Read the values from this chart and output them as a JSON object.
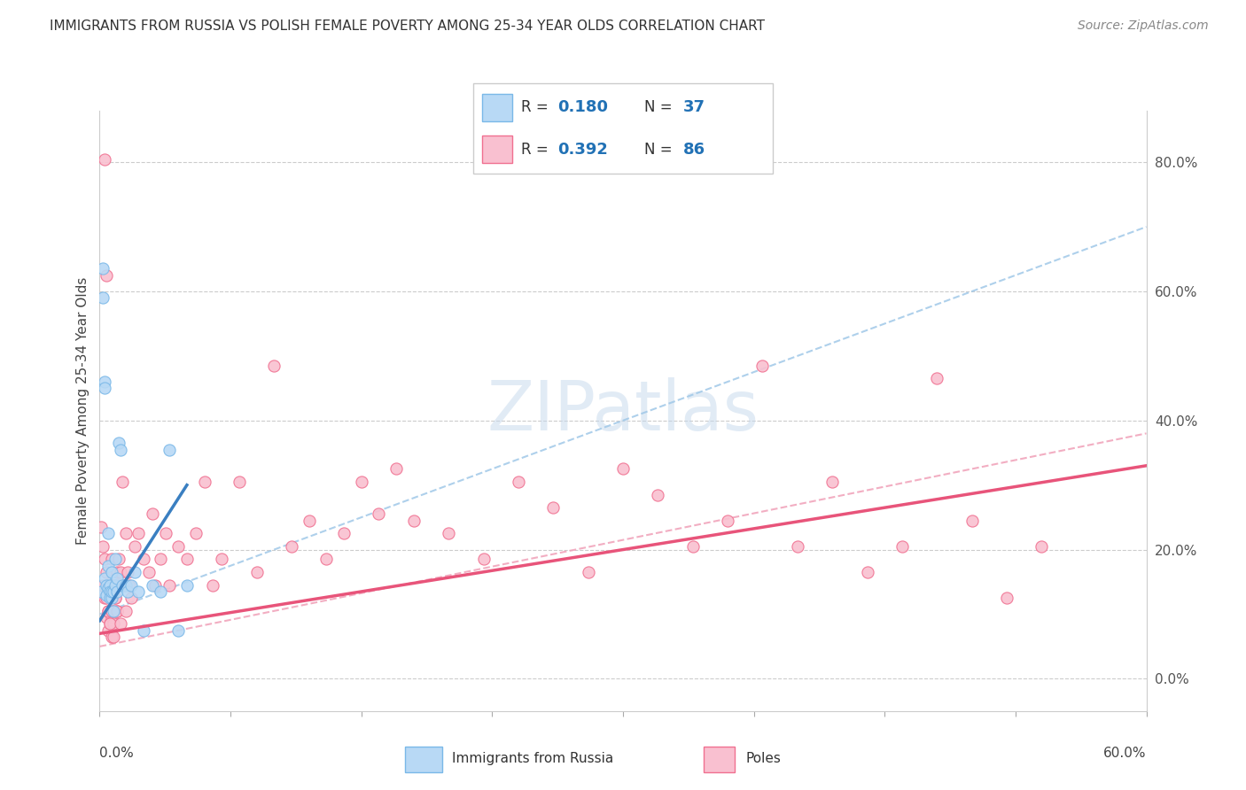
{
  "title": "IMMIGRANTS FROM RUSSIA VS POLISH FEMALE POVERTY AMONG 25-34 YEAR OLDS CORRELATION CHART",
  "source": "Source: ZipAtlas.com",
  "ylabel": "Female Poverty Among 25-34 Year Olds",
  "watermark": "ZIPatlas",
  "legend_r1": "0.180",
  "legend_n1": "37",
  "legend_r2": "0.392",
  "legend_n2": "86",
  "color_russia_fill": "#b8d9f5",
  "color_russia_edge": "#7ab8e8",
  "color_poles_fill": "#f9c0d0",
  "color_poles_edge": "#f07090",
  "color_russia_solid": "#3a7fc1",
  "color_poles_solid": "#e8547a",
  "color_russia_dash": "#a0c8e8",
  "color_poles_dash": "#f0a0b8",
  "russia_x": [
    0.001,
    0.002,
    0.002,
    0.003,
    0.003,
    0.003,
    0.004,
    0.004,
    0.005,
    0.005,
    0.005,
    0.006,
    0.006,
    0.006,
    0.007,
    0.007,
    0.007,
    0.008,
    0.008,
    0.009,
    0.009,
    0.01,
    0.01,
    0.011,
    0.012,
    0.013,
    0.015,
    0.016,
    0.018,
    0.02,
    0.022,
    0.025,
    0.03,
    0.035,
    0.04,
    0.045,
    0.05
  ],
  "russia_y": [
    0.135,
    0.635,
    0.59,
    0.46,
    0.45,
    0.155,
    0.145,
    0.13,
    0.175,
    0.225,
    0.14,
    0.145,
    0.135,
    0.125,
    0.165,
    0.125,
    0.135,
    0.135,
    0.105,
    0.145,
    0.185,
    0.135,
    0.155,
    0.365,
    0.355,
    0.145,
    0.145,
    0.135,
    0.145,
    0.165,
    0.135,
    0.075,
    0.145,
    0.135,
    0.355,
    0.075,
    0.145
  ],
  "poles_x": [
    0.001,
    0.002,
    0.002,
    0.003,
    0.003,
    0.004,
    0.004,
    0.004,
    0.005,
    0.005,
    0.005,
    0.006,
    0.006,
    0.007,
    0.007,
    0.007,
    0.008,
    0.008,
    0.008,
    0.009,
    0.009,
    0.01,
    0.01,
    0.011,
    0.011,
    0.012,
    0.013,
    0.014,
    0.015,
    0.016,
    0.017,
    0.018,
    0.02,
    0.022,
    0.025,
    0.028,
    0.03,
    0.032,
    0.035,
    0.038,
    0.04,
    0.045,
    0.05,
    0.055,
    0.06,
    0.065,
    0.07,
    0.08,
    0.09,
    0.1,
    0.11,
    0.12,
    0.13,
    0.14,
    0.15,
    0.16,
    0.17,
    0.18,
    0.2,
    0.22,
    0.24,
    0.26,
    0.28,
    0.3,
    0.32,
    0.34,
    0.36,
    0.38,
    0.4,
    0.42,
    0.44,
    0.46,
    0.48,
    0.5,
    0.52,
    0.54,
    0.003,
    0.004,
    0.005,
    0.006,
    0.007,
    0.008,
    0.009,
    0.01,
    0.012,
    0.015
  ],
  "poles_y": [
    0.235,
    0.205,
    0.145,
    0.185,
    0.125,
    0.165,
    0.125,
    0.095,
    0.145,
    0.105,
    0.075,
    0.145,
    0.085,
    0.185,
    0.095,
    0.065,
    0.145,
    0.105,
    0.085,
    0.125,
    0.145,
    0.165,
    0.105,
    0.185,
    0.145,
    0.165,
    0.305,
    0.145,
    0.225,
    0.165,
    0.145,
    0.125,
    0.205,
    0.225,
    0.185,
    0.165,
    0.255,
    0.145,
    0.185,
    0.225,
    0.145,
    0.205,
    0.185,
    0.225,
    0.305,
    0.145,
    0.185,
    0.305,
    0.165,
    0.485,
    0.205,
    0.245,
    0.185,
    0.225,
    0.305,
    0.255,
    0.325,
    0.245,
    0.225,
    0.185,
    0.305,
    0.265,
    0.165,
    0.325,
    0.285,
    0.205,
    0.245,
    0.485,
    0.205,
    0.305,
    0.165,
    0.205,
    0.465,
    0.245,
    0.125,
    0.205,
    0.805,
    0.625,
    0.105,
    0.085,
    0.105,
    0.065,
    0.125,
    0.105,
    0.085,
    0.105
  ],
  "xlim": [
    0.0,
    0.6
  ],
  "ylim": [
    -0.05,
    0.88
  ],
  "yticks": [
    0.0,
    0.2,
    0.4,
    0.6,
    0.8
  ],
  "yticklabels": [
    "0.0%",
    "20.0%",
    "40.0%",
    "60.0%",
    "80.0%"
  ],
  "xtick_positions": [
    0.0,
    0.075,
    0.15,
    0.225,
    0.3,
    0.375,
    0.45,
    0.525,
    0.6
  ]
}
